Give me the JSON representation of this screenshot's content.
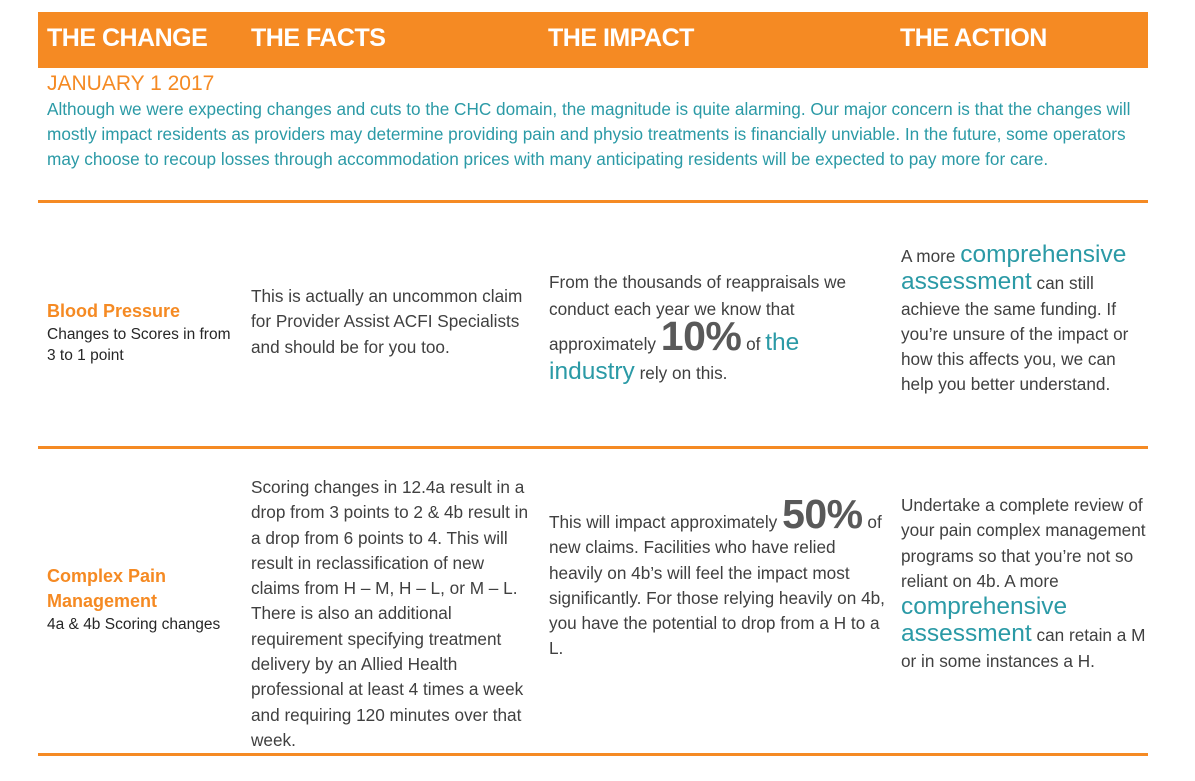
{
  "header": {
    "col1": "THE CHANGE",
    "col2": "THE FACTS",
    "col3": "THE IMPACT",
    "col4": "THE ACTION"
  },
  "intro": {
    "date": "JANUARY 1 2017",
    "text": "Although we were expecting changes and cuts to the CHC domain, the magnitude is quite alarming. Our major concern is that the changes will mostly impact residents as providers may determine providing pain and physio treatments is financially unviable. In the future, some operators may choose to recoup losses through accommodation prices with many anticipating residents will be expected to pay more for care."
  },
  "rows": [
    {
      "change_title": "Blood Pressure",
      "change_sub": "Changes to Scores in from 3 to 1 point",
      "facts": "This is actually an uncommon claim for Provider Assist ACFI Specialists and should be for you too.",
      "impact_pre": "From the thousands of reappraisals we conduct each year we know that approximately",
      "impact_figure": "10%",
      "impact_mid": "of",
      "impact_highlight": "the industry",
      "impact_post": "rely on this.",
      "action_pre": "A more",
      "action_highlight": "comprehensive assessment",
      "action_post": "can still achieve the same funding. If you’re unsure of the impact or how this affects you, we can help you better understand."
    },
    {
      "change_title": "Complex Pain Management",
      "change_sub": "4a & 4b Scoring changes",
      "facts": "Scoring changes in 12.4a result in a drop from 3 points to 2 & 4b result in a drop from 6 points to 4. This will result in reclassification of new claims from H – M, H – L, or M – L. There is also an additional requirement specifying treatment delivery by an Allied Health professional at least 4 times a week and requiring 120 minutes over that week.",
      "impact_pre": "This will impact approximately",
      "impact_figure": "50%",
      "impact_post": "of new claims. Facilities who have relied heavily on 4b’s will feel the impact most significantly. For those relying heavily on 4b, you have the potential to drop from a H to a L.",
      "action_pre": "Undertake a complete review of your pain complex management programs so that you’re not so reliant on 4b. A more",
      "action_highlight": "comprehensive assessment",
      "action_post": "can retain a M or in some instances a H."
    }
  ],
  "colors": {
    "orange": "#f58a23",
    "teal": "#2b9aa6",
    "text": "#404040"
  }
}
